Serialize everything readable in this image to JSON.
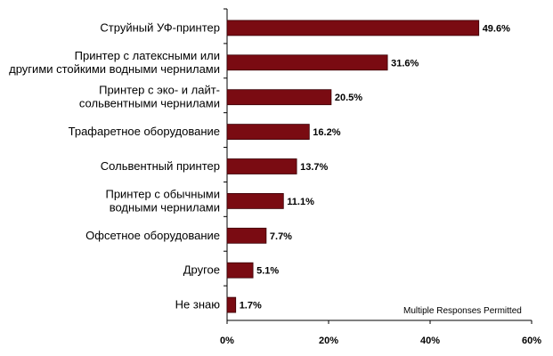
{
  "chart_data": {
    "type": "bar",
    "orientation": "horizontal",
    "categories": [
      [
        "Струйный УФ-принтер"
      ],
      [
        "Принтер с латексными или",
        "другими стойкими водными чернилами"
      ],
      [
        "Принтер с эко- и лайт-",
        "сольвентными чернилами"
      ],
      [
        "Трафаретное оборудование"
      ],
      [
        "Сольвентный принтер"
      ],
      [
        "Принтер с обычными",
        "водными чернилами"
      ],
      [
        "Офсетное оборудование"
      ],
      [
        "Другое"
      ],
      [
        "Не знаю"
      ]
    ],
    "values": [
      49.6,
      31.6,
      20.5,
      16.2,
      13.7,
      11.1,
      7.7,
      5.1,
      1.7
    ],
    "value_labels": [
      "49.6%",
      "31.6%",
      "20.5%",
      "16.2%",
      "13.7%",
      "11.1%",
      "7.7%",
      "5.1%",
      "1.7%"
    ],
    "xlim": [
      0,
      60
    ],
    "x_ticks": [
      0,
      20,
      40,
      60
    ],
    "x_tick_labels": [
      "0%",
      "20%",
      "40%",
      "60%"
    ],
    "grid": false,
    "note": "Multiple Responses Permitted",
    "colors": {
      "bar": "#7a0b12",
      "bar_edge": "#3a0006",
      "axis": "#000000"
    }
  }
}
